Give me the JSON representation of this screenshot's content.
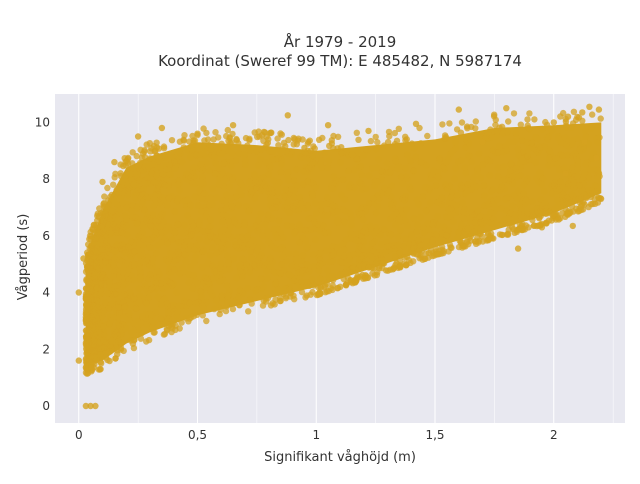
{
  "chart_data": {
    "type": "scatter",
    "title_line1": "År 1979 - 2019",
    "title_line2": "Koordinat (Sweref 99 TM): E 485482, N 5987174",
    "xlabel": "Signifikant våghöjd (m)",
    "ylabel": "Vågperiod (s)",
    "xlim": [
      -0.1,
      2.3
    ],
    "ylim": [
      -0.6,
      11.0
    ],
    "x_ticks": [
      0,
      0.5,
      1,
      1.5,
      2
    ],
    "x_tick_labels": [
      "0",
      "0,5",
      "1",
      "1,5",
      "2"
    ],
    "y_ticks": [
      0,
      2,
      4,
      6,
      8,
      10
    ],
    "y_tick_labels": [
      "0",
      "2",
      "4",
      "6",
      "8",
      "10"
    ],
    "grid": true,
    "colors": {
      "marker": "#d4a21f",
      "plot_bg": "#e8e8f0",
      "grid": "#ffffff",
      "text": "#333333"
    },
    "envelope": {
      "x": [
        0.03,
        0.05,
        0.1,
        0.2,
        0.3,
        0.5,
        0.75,
        1.0,
        1.25,
        1.5,
        1.75,
        2.0,
        2.2
      ],
      "lower": [
        1.1,
        1.2,
        1.3,
        1.9,
        2.3,
        2.9,
        3.4,
        3.9,
        4.6,
        5.3,
        5.9,
        6.5,
        7.2
      ],
      "upper": [
        5.2,
        6.2,
        7.4,
        8.9,
        9.3,
        9.8,
        9.7,
        9.5,
        9.7,
        9.9,
        10.3,
        10.4,
        10.5
      ]
    },
    "points": [
      {
        "x": 0.03,
        "y": 0.0
      },
      {
        "x": 0.05,
        "y": 0.0
      },
      {
        "x": 0.07,
        "y": 0.0
      },
      {
        "x": 0.0,
        "y": 1.6
      },
      {
        "x": 0.0,
        "y": 4.0
      },
      {
        "x": 0.02,
        "y": 5.2
      },
      {
        "x": 0.1,
        "y": 7.9
      },
      {
        "x": 0.25,
        "y": 9.5
      },
      {
        "x": 0.35,
        "y": 9.8
      },
      {
        "x": 0.5,
        "y": 9.6
      },
      {
        "x": 0.65,
        "y": 9.9
      },
      {
        "x": 0.88,
        "y": 10.25
      },
      {
        "x": 1.05,
        "y": 9.9
      },
      {
        "x": 1.22,
        "y": 9.7
      },
      {
        "x": 1.42,
        "y": 9.95
      },
      {
        "x": 1.6,
        "y": 10.45
      },
      {
        "x": 1.8,
        "y": 10.5
      },
      {
        "x": 2.0,
        "y": 10.0
      },
      {
        "x": 2.06,
        "y": 10.2
      },
      {
        "x": 2.12,
        "y": 10.35
      },
      {
        "x": 2.15,
        "y": 10.55
      },
      {
        "x": 2.19,
        "y": 10.45
      },
      {
        "x": 2.13,
        "y": 9.3
      },
      {
        "x": 2.18,
        "y": 8.75
      },
      {
        "x": 2.05,
        "y": 8.2
      },
      {
        "x": 1.95,
        "y": 6.3
      },
      {
        "x": 1.85,
        "y": 5.55
      },
      {
        "x": 2.08,
        "y": 6.35
      },
      {
        "x": 1.7,
        "y": 9.3
      },
      {
        "x": 0.95,
        "y": 9.1
      },
      {
        "x": 0.15,
        "y": 8.6
      }
    ]
  }
}
